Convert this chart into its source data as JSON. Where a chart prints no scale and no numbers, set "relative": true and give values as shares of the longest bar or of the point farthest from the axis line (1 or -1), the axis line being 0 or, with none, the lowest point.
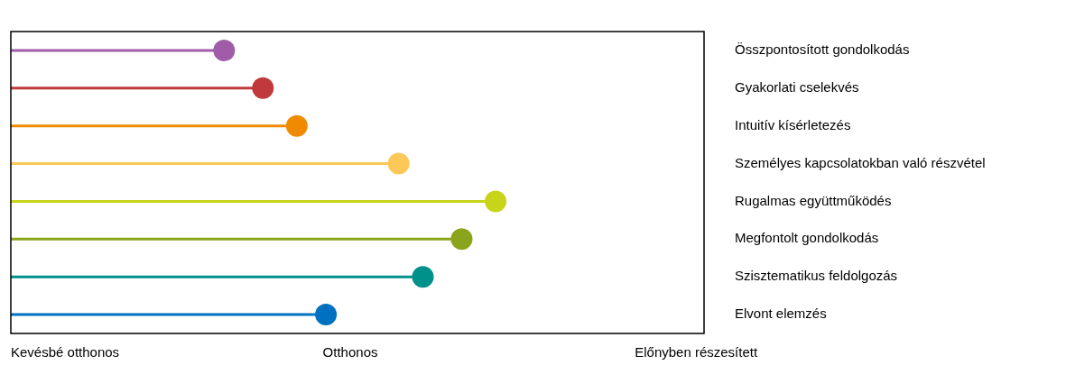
{
  "chart_data": {
    "type": "lollipop",
    "orientation": "horizontal",
    "relative": true,
    "categories": [
      "Összpontosított gondolkodás",
      "Gyakorlati cselekvés",
      "Intuitív kísérletezés",
      "Személyes kapcsolatokban való részvétel",
      "Rugalmas együttműködés",
      "Megfontolt gondolkodás",
      "Szisztematikus feldolgozás",
      "Elvont elemzés"
    ],
    "values": [
      0.44,
      0.52,
      0.59,
      0.8,
      1,
      0.93,
      0.85,
      0.65
    ],
    "colors": [
      "#a05ca8",
      "#c0393b",
      "#f08a00",
      "#fdc857",
      "#c8d419",
      "#8aa51b",
      "#00918a",
      "#0070c0"
    ],
    "marker": "circle",
    "annotations": [
      "Kevésbé otthonos",
      "Otthonos",
      "Előnyben részesített"
    ]
  }
}
